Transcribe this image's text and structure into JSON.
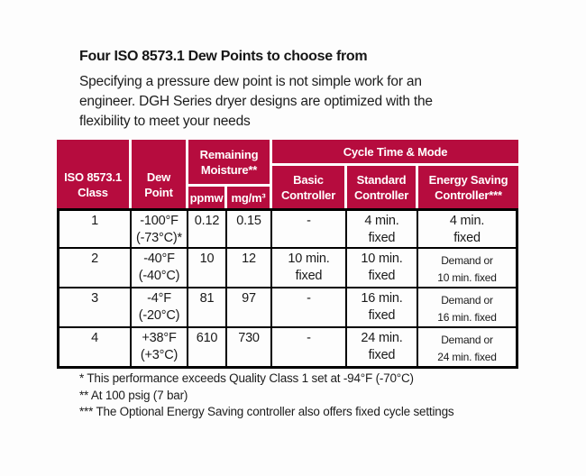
{
  "colors": {
    "header_bg": "#b60c3e",
    "header_text": "#ffffff",
    "body_text": "#1a1a1a",
    "table_border": "#000000"
  },
  "title": "Four ISO 8573.1 Dew Points to choose from",
  "intro_lines": [
    "Specifying a pressure dew point is not simple work for an",
    "engineer. DGH Series dryer designs are optimized with the",
    "flexibility to meet your needs"
  ],
  "table": {
    "header": {
      "iso_class": "ISO 8573.1\nClass",
      "dew_point": "Dew\nPoint",
      "remaining_moisture": "Remaining\nMoisture**",
      "ppmw": "ppmw",
      "mg_m3": "mg/m³",
      "cycle_time_mode": "Cycle Time & Mode",
      "basic_controller": "Basic\nController",
      "standard_controller": "Standard\nController",
      "energy_saving_controller": "Energy Saving\nController***"
    },
    "rows": [
      {
        "cells": [
          {
            "text": "1"
          },
          {
            "text": "-100°F\n(-73°C)*"
          },
          {
            "text": "0.12"
          },
          {
            "text": "0.15"
          },
          {
            "text": "-"
          },
          {
            "text": "4 min.\nfixed"
          },
          {
            "text": "4 min.\nfixed"
          }
        ]
      },
      {
        "cells": [
          {
            "text": "2"
          },
          {
            "text": "-40°F\n(-40°C)"
          },
          {
            "text": "10"
          },
          {
            "text": "12"
          },
          {
            "text": "10 min.\nfixed"
          },
          {
            "text": "10 min.\nfixed"
          },
          {
            "text": "Demand or\n10 min. fixed",
            "condensed": true
          }
        ]
      },
      {
        "cells": [
          {
            "text": "3"
          },
          {
            "text": "-4°F\n(-20°C)"
          },
          {
            "text": "81"
          },
          {
            "text": "97"
          },
          {
            "text": "-"
          },
          {
            "text": "16 min.\nfixed"
          },
          {
            "text": "Demand or\n16 min. fixed",
            "condensed": true
          }
        ]
      },
      {
        "cells": [
          {
            "text": "4"
          },
          {
            "text": "+38°F\n(+3°C)"
          },
          {
            "text": "610"
          },
          {
            "text": "730"
          },
          {
            "text": "-"
          },
          {
            "text": "24 min.\nfixed"
          },
          {
            "text": "Demand or\n24 min. fixed",
            "condensed": true
          }
        ]
      }
    ]
  },
  "footnotes": [
    "* This performance exceeds Quality Class 1 set at -94°F (-70°C)",
    "** At 100 psig (7 bar)",
    "*** The Optional Energy Saving controller also offers fixed cycle settings"
  ]
}
